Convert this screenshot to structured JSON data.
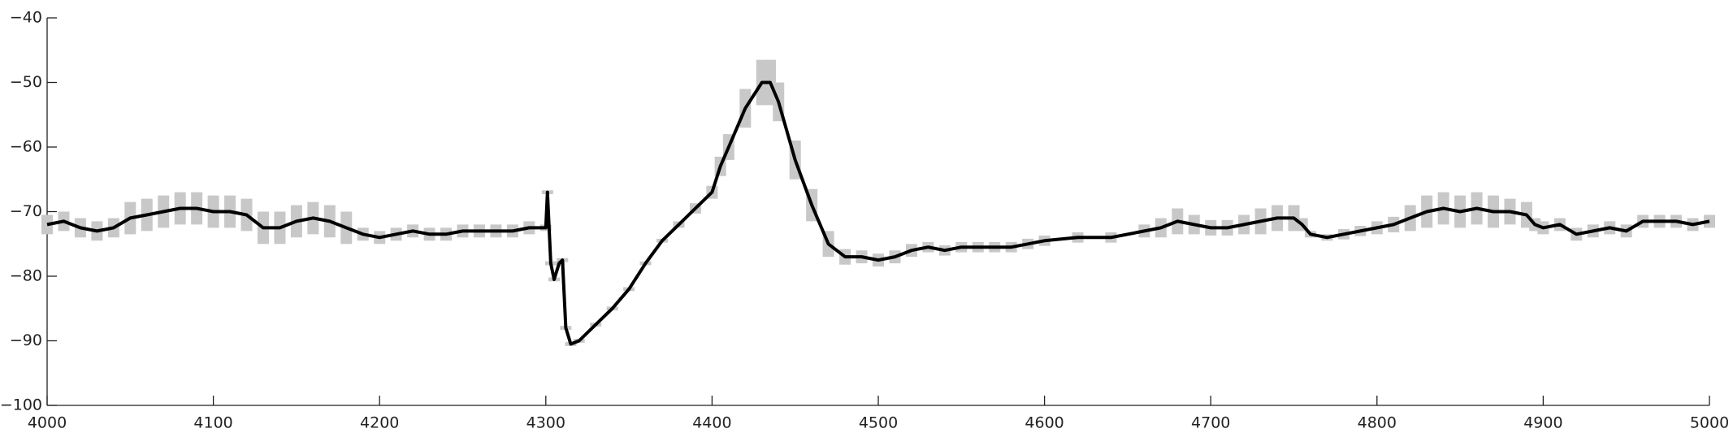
{
  "chart_data": {
    "type": "line",
    "x": [
      4000,
      4010,
      4020,
      4030,
      4040,
      4050,
      4060,
      4070,
      4080,
      4090,
      4100,
      4110,
      4120,
      4130,
      4140,
      4150,
      4160,
      4170,
      4180,
      4190,
      4200,
      4210,
      4220,
      4230,
      4240,
      4250,
      4260,
      4270,
      4280,
      4290,
      4300,
      4301,
      4303,
      4305,
      4308,
      4310,
      4312,
      4315,
      4320,
      4330,
      4340,
      4350,
      4360,
      4370,
      4380,
      4390,
      4400,
      4405,
      4410,
      4420,
      4430,
      4435,
      4440,
      4450,
      4460,
      4470,
      4480,
      4490,
      4500,
      4510,
      4520,
      4530,
      4540,
      4550,
      4560,
      4570,
      4580,
      4590,
      4600,
      4620,
      4640,
      4660,
      4670,
      4680,
      4690,
      4700,
      4710,
      4720,
      4730,
      4740,
      4750,
      4755,
      4760,
      4770,
      4780,
      4790,
      4800,
      4810,
      4820,
      4830,
      4840,
      4850,
      4860,
      4870,
      4880,
      4890,
      4895,
      4900,
      4910,
      4920,
      4930,
      4940,
      4950,
      4960,
      4970,
      4980,
      4990,
      5000
    ],
    "series": [
      {
        "color": "#000000",
        "error_color": "#c8c8c8",
        "values": [
          -72,
          -71.5,
          -72.5,
          -73,
          -72.5,
          -71,
          -70.5,
          -70,
          -69.5,
          -69.5,
          -70,
          -70,
          -70.5,
          -72.5,
          -72.5,
          -71.5,
          -71,
          -71.5,
          -72.5,
          -73.5,
          -74,
          -73.5,
          -73,
          -73.5,
          -73.5,
          -73,
          -73,
          -73,
          -73,
          -72.5,
          -72.5,
          -67,
          -78,
          -80.5,
          -78,
          -77.5,
          -88,
          -90.5,
          -90,
          -87.5,
          -85,
          -82,
          -78,
          -74.5,
          -72,
          -69.5,
          -67,
          -63,
          -60,
          -54,
          -50,
          -50,
          -53,
          -62,
          -69,
          -75,
          -77,
          -77,
          -77.5,
          -77,
          -76,
          -75.5,
          -76,
          -75.5,
          -75.5,
          -75.5,
          -75.5,
          -75,
          -74.5,
          -74,
          -74,
          -73,
          -72.5,
          -71.5,
          -72,
          -72.5,
          -72.5,
          -72,
          -71.5,
          -71,
          -71,
          -72,
          -73.5,
          -74,
          -73.5,
          -73,
          -72.5,
          -72,
          -71,
          -70,
          -69.5,
          -70,
          -69.5,
          -70,
          -70,
          -70.5,
          -72,
          -72.5,
          -72,
          -73.5,
          -73,
          -72.5,
          -73,
          -71.5,
          -71.5,
          -71.5,
          -72,
          -71.5
        ],
        "errors": [
          1.5,
          1.5,
          1.5,
          1.5,
          1.5,
          2.5,
          2.5,
          2.5,
          2.5,
          2.5,
          2.5,
          2.5,
          2.5,
          2.5,
          2.5,
          2.5,
          2.5,
          2.5,
          2.5,
          1,
          1,
          1,
          1,
          1,
          1,
          1,
          1,
          1,
          1,
          1,
          0.5,
          0.3,
          0.3,
          0.3,
          0.3,
          0.3,
          0.3,
          0.3,
          0.3,
          0.3,
          0.3,
          0.3,
          0.3,
          0.3,
          0.5,
          0.8,
          1,
          1.5,
          2,
          3,
          3.5,
          3.5,
          3,
          3,
          2.5,
          2,
          1.2,
          1,
          1,
          1,
          1,
          0.8,
          0.8,
          0.8,
          0.8,
          0.8,
          0.8,
          0.8,
          0.8,
          0.8,
          0.8,
          1,
          1.5,
          2,
          1.5,
          1.2,
          1.2,
          1.5,
          2,
          2,
          2,
          1,
          0.5,
          0.5,
          0.8,
          0.8,
          1,
          1.2,
          2,
          2.5,
          2.5,
          2.5,
          2.5,
          2.5,
          2,
          2,
          1,
          1,
          1,
          1,
          1,
          1,
          1,
          1,
          1,
          1,
          1,
          1
        ]
      }
    ],
    "xlim": [
      4000,
      5000
    ],
    "xticks": [
      4000,
      4100,
      4200,
      4300,
      4400,
      4500,
      4600,
      4700,
      4800,
      4900,
      5000
    ],
    "ylim": [
      -100,
      -40
    ],
    "yticks": [
      {
        "value": -100,
        "label": "−100"
      },
      {
        "value": -90,
        "label": "−90"
      },
      {
        "value": -80,
        "label": "−80"
      },
      {
        "value": -70,
        "label": "−70"
      },
      {
        "value": -60,
        "label": "−60"
      },
      {
        "value": -50,
        "label": "−50"
      },
      {
        "value": -40,
        "label": "−40"
      }
    ],
    "grid": false
  }
}
